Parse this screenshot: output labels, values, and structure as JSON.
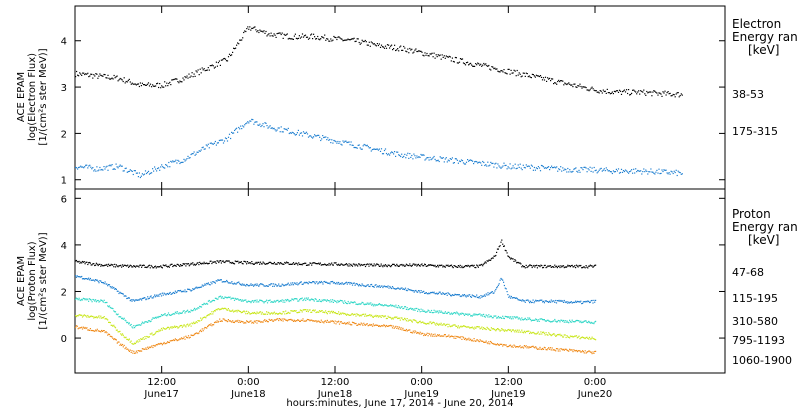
{
  "chart_data": [
    {
      "type": "scatter",
      "panel": "electron",
      "ylabel": [
        "ACE EPAM",
        "log(Electron Flux)",
        "[1/(cm²s ster MeV)]"
      ],
      "ylim": [
        0.8,
        4.75
      ],
      "yticks": [
        1,
        2,
        3,
        4
      ],
      "legend_title": [
        "Electron",
        "Energy ran",
        "[keV]"
      ],
      "grid": false,
      "series": [
        {
          "name": "38-53",
          "color": "#000000",
          "x": [
            0,
            3,
            6,
            9,
            12,
            15,
            18,
            21,
            24,
            27,
            30,
            33,
            36,
            39,
            42,
            45,
            48,
            51,
            54,
            57,
            60,
            63,
            66,
            69,
            72,
            75,
            78,
            81,
            84
          ],
          "y": [
            3.3,
            3.25,
            3.2,
            3.05,
            3.05,
            3.2,
            3.4,
            3.6,
            4.3,
            4.15,
            4.1,
            4.1,
            4.05,
            4.0,
            3.9,
            3.85,
            3.75,
            3.65,
            3.55,
            3.45,
            3.35,
            3.25,
            3.15,
            3.05,
            2.95,
            2.9,
            2.9,
            2.87,
            2.85
          ]
        },
        {
          "name": "175-315",
          "color": "#1e7fd0",
          "x": [
            0,
            3,
            6,
            9,
            12,
            15,
            18,
            21,
            24,
            27,
            30,
            33,
            36,
            39,
            42,
            45,
            48,
            51,
            54,
            57,
            60,
            63,
            66,
            69,
            72,
            75,
            78,
            81,
            84
          ],
          "y": [
            1.3,
            1.25,
            1.3,
            1.1,
            1.3,
            1.45,
            1.7,
            1.9,
            2.3,
            2.15,
            2.05,
            1.95,
            1.85,
            1.75,
            1.65,
            1.55,
            1.5,
            1.45,
            1.4,
            1.35,
            1.3,
            1.28,
            1.25,
            1.23,
            1.22,
            1.2,
            1.2,
            1.18,
            1.15
          ]
        }
      ]
    },
    {
      "type": "scatter",
      "panel": "proton",
      "ylabel": [
        "ACE EPAM",
        "log(Proton Flux)",
        "[1/(cm²s ster MeV)]"
      ],
      "ylim": [
        -1.5,
        6.4
      ],
      "yticks": [
        0,
        2,
        4,
        6
      ],
      "legend_title": [
        "Proton",
        "Energy ran",
        "[keV]"
      ],
      "grid": false,
      "x_ticks": [
        "12:00",
        "0:00",
        "12:00",
        "0:00",
        "12:00",
        "0:00"
      ],
      "x_date_labels": [
        "June17",
        "June18",
        "June18",
        "June19",
        "June19",
        "June20"
      ],
      "x_tick_positions_hours": [
        12,
        24,
        36,
        48,
        60,
        72
      ],
      "xlim_hours": [
        0,
        90
      ],
      "xlabel": "hours:minutes, June 17, 2014 - June 20, 2014",
      "series": [
        {
          "name": "47-68",
          "color": "#000000",
          "x": [
            0,
            4,
            8,
            12,
            16,
            20,
            24,
            28,
            32,
            36,
            40,
            44,
            48,
            52,
            56,
            58,
            59,
            60,
            62,
            66,
            70,
            72
          ],
          "y": [
            3.3,
            3.15,
            3.1,
            3.1,
            3.2,
            3.3,
            3.25,
            3.25,
            3.2,
            3.2,
            3.15,
            3.15,
            3.15,
            3.1,
            3.1,
            3.5,
            4.2,
            3.5,
            3.1,
            3.1,
            3.1,
            3.1
          ]
        },
        {
          "name": "115-195",
          "color": "#1e7fd0",
          "x": [
            0,
            4,
            6,
            8,
            12,
            16,
            20,
            24,
            28,
            32,
            36,
            40,
            44,
            48,
            52,
            56,
            58,
            59,
            60,
            62,
            66,
            70,
            72
          ],
          "y": [
            2.7,
            2.4,
            2.0,
            1.6,
            1.9,
            2.1,
            2.5,
            2.3,
            2.3,
            2.4,
            2.4,
            2.3,
            2.2,
            2.0,
            1.9,
            1.8,
            2.0,
            2.6,
            1.8,
            1.6,
            1.6,
            1.55,
            1.6
          ]
        },
        {
          "name": "310-580",
          "color": "#2fd6c6",
          "x": [
            0,
            4,
            6,
            8,
            12,
            16,
            20,
            24,
            28,
            32,
            36,
            40,
            44,
            48,
            52,
            56,
            60,
            64,
            68,
            72
          ],
          "y": [
            1.7,
            1.6,
            1.0,
            0.5,
            1.0,
            1.2,
            1.8,
            1.6,
            1.6,
            1.7,
            1.6,
            1.5,
            1.4,
            1.2,
            1.1,
            1.0,
            0.9,
            0.8,
            0.75,
            0.7
          ]
        },
        {
          "name": "795-1193",
          "color": "#c8e61a",
          "x": [
            0,
            4,
            6,
            8,
            12,
            16,
            20,
            24,
            28,
            32,
            36,
            40,
            44,
            48,
            52,
            56,
            60,
            64,
            68,
            72
          ],
          "y": [
            1.0,
            0.9,
            0.3,
            -0.2,
            0.4,
            0.6,
            1.3,
            1.1,
            1.1,
            1.2,
            1.1,
            1.0,
            0.9,
            0.7,
            0.55,
            0.45,
            0.35,
            0.25,
            0.1,
            0.0
          ]
        },
        {
          "name": "1060-1900",
          "color": "#ef8a1a",
          "x": [
            0,
            4,
            6,
            8,
            12,
            16,
            20,
            24,
            28,
            32,
            36,
            40,
            44,
            48,
            52,
            56,
            60,
            64,
            68,
            72
          ],
          "y": [
            0.5,
            0.3,
            -0.2,
            -0.6,
            -0.2,
            0.1,
            0.8,
            0.7,
            0.8,
            0.8,
            0.7,
            0.6,
            0.5,
            0.2,
            0.1,
            -0.1,
            -0.3,
            -0.4,
            -0.5,
            -0.6
          ]
        }
      ]
    }
  ]
}
